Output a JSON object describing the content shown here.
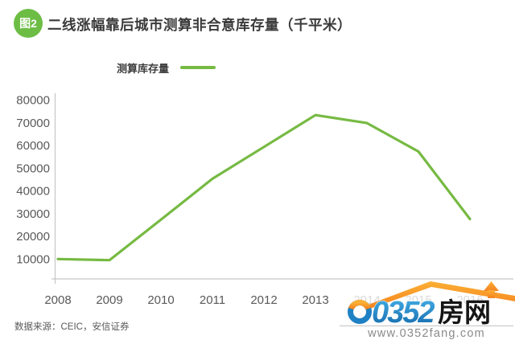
{
  "header": {
    "badge": "图2",
    "title": "二线涨幅靠后城市测算非合意库存量（千平米）"
  },
  "legend": {
    "label": "测算库存量"
  },
  "chart_data": {
    "type": "line",
    "title": "二线涨幅靠后城市测算非合意库存量（千平米）",
    "categories": [
      "2008",
      "2009",
      "2010",
      "2011",
      "2012",
      "2013",
      "2014",
      "2015",
      "2016"
    ],
    "series": [
      {
        "name": "测算库存量",
        "values": [
          9900,
          9400,
          27200,
          45200,
          59200,
          73200,
          69700,
          57200,
          27500
        ]
      }
    ],
    "xlabel": "",
    "ylabel": "",
    "ylim": [
      0,
      80000
    ],
    "yticks": [
      10000,
      20000,
      30000,
      40000,
      50000,
      60000,
      70000,
      80000
    ],
    "grid": false,
    "legend_position": "top"
  },
  "colors": {
    "line_green": "#76ba43",
    "badge_green": "#6dbd45",
    "logo_blue": "#1e81c4",
    "logo_orange": "#f7931e",
    "axis_gray": "#c6c6c6",
    "label_gray": "#595959"
  },
  "source": {
    "text": "数据来源：CEIC，安信证券"
  },
  "watermark": {
    "number": "0352",
    "cn": "房网",
    "url": "www.0352fang.com"
  }
}
